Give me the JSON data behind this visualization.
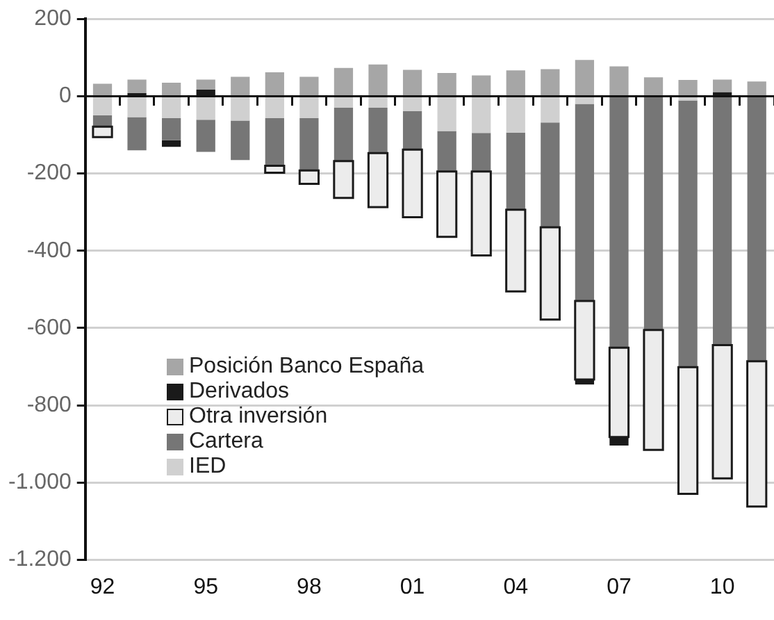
{
  "chart_data": {
    "type": "bar",
    "stacked": true,
    "categories": [
      "92",
      null,
      null,
      "95",
      null,
      null,
      "98",
      null,
      null,
      "01",
      null,
      null,
      "04",
      null,
      null,
      "07",
      null,
      null,
      "10",
      null
    ],
    "series": [
      {
        "name": "IED",
        "color": "#d0d0d0",
        "values": [
          -49,
          -54,
          -57,
          -61,
          -63,
          -57,
          -57,
          -30,
          -30,
          -39,
          -90,
          -95,
          -94,
          -68,
          -20,
          null,
          null,
          -11,
          null,
          null
        ]
      },
      {
        "name": "Cartera",
        "color": "#767676",
        "values": [
          -30,
          -86,
          -57,
          -83,
          -102,
          -123,
          -135,
          -138,
          -117,
          -99,
          -105,
          -100,
          -200,
          -271,
          -510,
          -651,
          -605,
          -690,
          -644,
          -686
        ]
      },
      {
        "name": "Otra inversión",
        "color": "#ececec",
        "values": [
          -27,
          null,
          null,
          null,
          null,
          -18,
          -35,
          -95,
          -140,
          -175,
          -169,
          -217,
          -211,
          -239,
          -203,
          -231,
          -310,
          -328,
          -345,
          -376
        ]
      },
      {
        "name": "Derivados",
        "color": "#1a1a1a",
        "values": [
          null,
          8,
          -17,
          17,
          null,
          null,
          null,
          null,
          null,
          null,
          null,
          null,
          null,
          null,
          -13,
          -22,
          null,
          null,
          10,
          null
        ]
      },
      {
        "name": "Posición Banco España",
        "color": "#a6a6a6",
        "values": [
          32,
          35,
          35,
          26,
          50,
          62,
          50,
          73,
          82,
          68,
          60,
          54,
          67,
          70,
          94,
          77,
          49,
          42,
          33,
          38
        ]
      }
    ],
    "ylim": [
      -1200,
      200
    ],
    "yticks": [
      {
        "value": -1200,
        "label": "-1.200"
      },
      {
        "value": -1000,
        "label": "-1.000"
      },
      -800,
      -600,
      -400,
      -200,
      0,
      200
    ],
    "grid": "y",
    "legend": "bottom left"
  }
}
